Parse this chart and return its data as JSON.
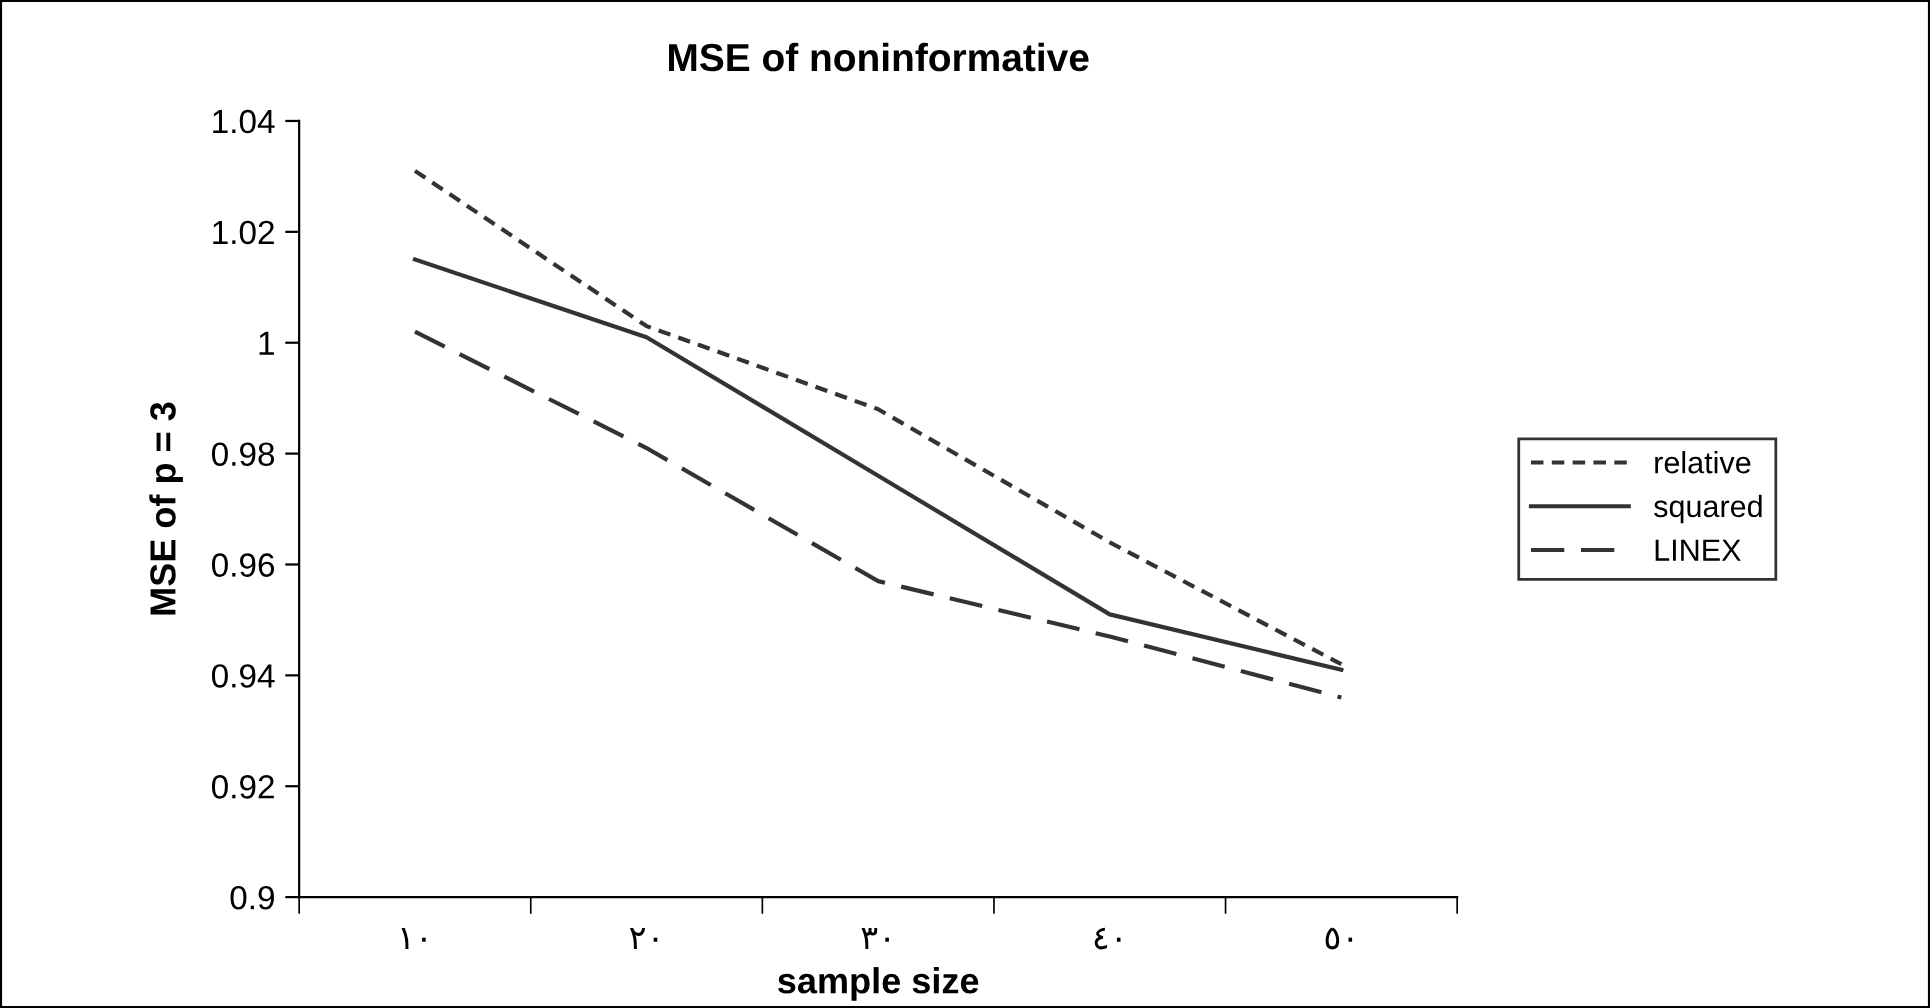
{
  "chart_data": {
    "type": "line",
    "title": "MSE of noninformative",
    "xlabel": "sample size",
    "ylabel": "MSE of p = 3",
    "categories": [
      "١٠",
      "٢٠",
      "٣٠",
      "٤٠",
      "٥٠"
    ],
    "series": [
      {
        "name": "relative",
        "color": "#333333",
        "line_style": "dotted",
        "values": [
          1.031,
          1.003,
          0.988,
          0.964,
          0.942
        ]
      },
      {
        "name": "squared",
        "color": "#333333",
        "line_style": "solid",
        "values": [
          1.015,
          1.001,
          0.976,
          0.951,
          0.941
        ]
      },
      {
        "name": "LINEX",
        "color": "#333333",
        "line_style": "dashed",
        "values": [
          1.002,
          0.981,
          0.957,
          0.947,
          0.936
        ]
      }
    ],
    "ylim": [
      0.9,
      1.04
    ],
    "yticks": [
      0.9,
      0.92,
      0.94,
      0.96,
      0.98,
      1,
      1.02,
      1.04
    ],
    "grid": false,
    "legend": "right",
    "marker": "none"
  }
}
